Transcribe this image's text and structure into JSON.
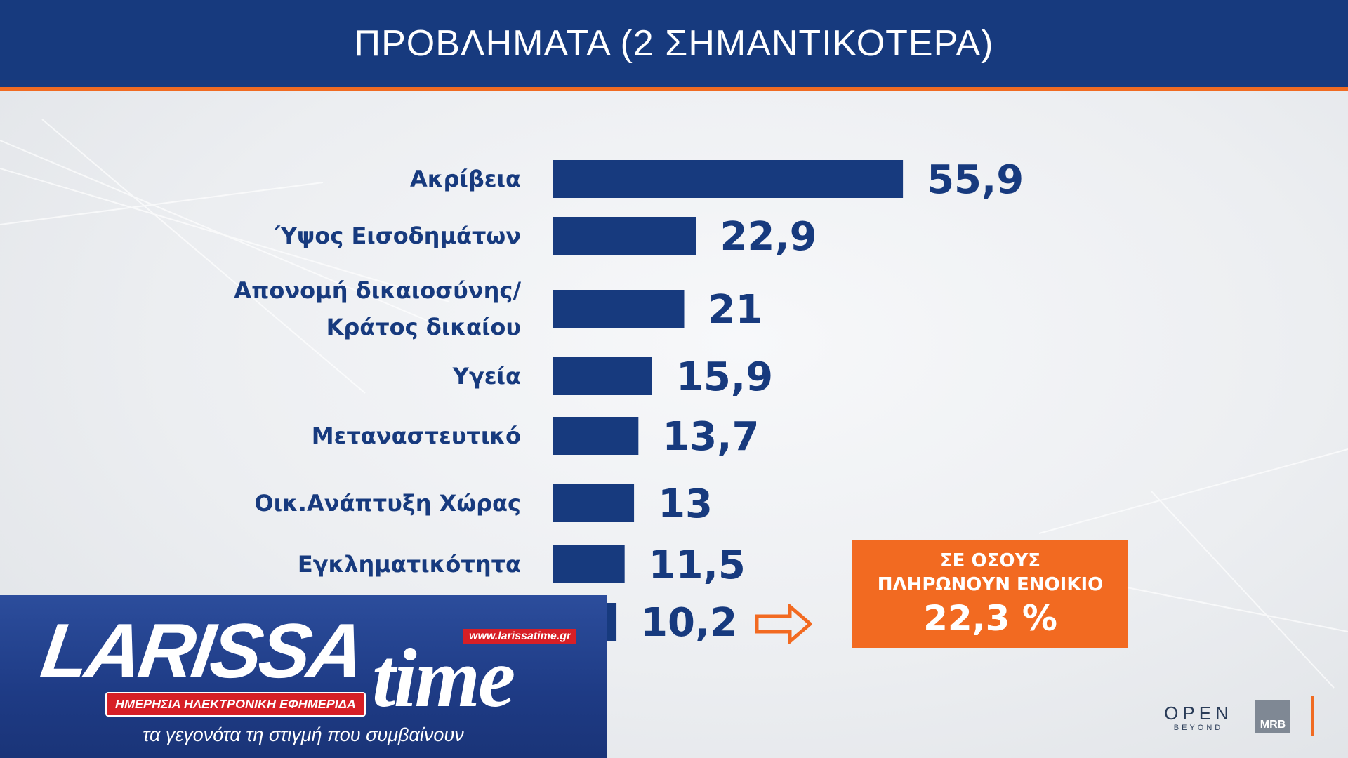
{
  "header": {
    "title": "ΠΡΟΒΛΗΜΑΤΑ (2 ΣΗΜΑΝΤΙΚΟΤΕΡΑ)"
  },
  "colors": {
    "bar": "#173a7e",
    "header": "#173a7e",
    "accent": "#f26a21"
  },
  "chart_data": {
    "type": "bar",
    "orientation": "horizontal",
    "title": "ΠΡΟΒΛΗΜΑΤΑ (2 ΣΗΜΑΝΤΙΚΟΤΕΡΑ)",
    "categories": [
      "Ακρίβεια",
      "Ύψος Εισοδημάτων",
      "Απονομή δικαιοσύνης/ Κράτος δικαίου",
      "Υγεία",
      "Μεταναστευτικό",
      "Οικ.Ανάπτυξη Χώρας",
      "Εγκληματικότητα",
      ""
    ],
    "category_lines": [
      [
        "Ακρίβεια"
      ],
      [
        "Ύψος Εισοδημάτων"
      ],
      [
        "Απονομή δικαιοσύνης/",
        "Κράτος δικαίου"
      ],
      [
        "Υγεία"
      ],
      [
        "Μεταναστευτικό"
      ],
      [
        "Οικ.Ανάπτυξη Χώρας"
      ],
      [
        "Εγκληματικότητα"
      ],
      [
        ""
      ]
    ],
    "values": [
      55.9,
      22.9,
      21,
      15.9,
      13.7,
      13,
      11.5,
      10.2
    ],
    "value_labels": [
      "55,9",
      "22,9",
      "21",
      "15,9",
      "13,7",
      "13",
      "11,5",
      "10,2"
    ],
    "xlim": [
      0,
      56
    ],
    "grid": false,
    "legend": "none"
  },
  "callout": {
    "line1": "ΣΕ ΟΣΟΥΣ",
    "line2": "ΠΛΗΡΩΝΟΥΝ ΕΝΟΙΚΙΟ",
    "value": "22,3 %"
  },
  "logo": {
    "name": "LARISSA",
    "time": "time",
    "url": "www.larissatime.gr",
    "subtitle": "ΗΜΕΡΗΣΙΑ ΗΛΕΚΤΡΟΝΙΚΗ ΕΦΗΜΕΡΙΔΑ",
    "tagline": "τα γεγονότα τη στιγμή που συμβαίνουν"
  },
  "brands": {
    "open": "OPEN",
    "open_sub": "BEYOND",
    "mrb": "MRB"
  },
  "icons": {
    "callout_arrow": "right-arrow-outline-icon"
  }
}
